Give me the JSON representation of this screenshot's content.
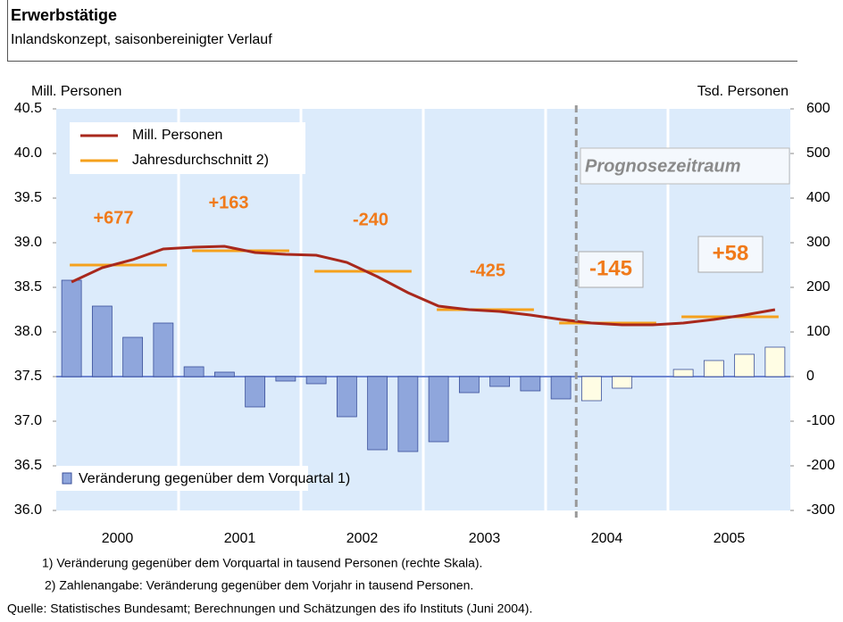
{
  "chart_data": {
    "type": "combo",
    "title": "Erwerbstätige",
    "subtitle": "Inlandskonzept, saisonbereinigter Verlauf",
    "ylabel": "Mill. Personen",
    "y2label": "Tsd. Personen",
    "categories": [
      "2000",
      "2001",
      "2002",
      "2003",
      "2004",
      "2005"
    ],
    "ylim": [
      36,
      40.5
    ],
    "yticks": [
      {
        "value": 36,
        "label": "36.0"
      },
      36.5,
      {
        "value": 37,
        "label": "37.0"
      },
      37.5,
      {
        "value": 38,
        "label": "38.0"
      },
      38.5,
      {
        "value": 39,
        "label": "39.0"
      },
      39.5,
      {
        "value": 40,
        "label": "40.0"
      },
      40.5
    ],
    "y2lim": [
      -300,
      600
    ],
    "y2ticks": [
      -300,
      -200,
      -100,
      0,
      100,
      200,
      300,
      400,
      500,
      600
    ],
    "series": [
      {
        "name": "Veränderung gegenüber dem Vorquartal 1)",
        "type": "bar",
        "axis": "y2",
        "color": "#8fa6dc",
        "forecast_color": "#fffde4",
        "values": [
          [
            216,
            158,
            88,
            120
          ],
          [
            22,
            10,
            -68,
            -10
          ],
          [
            -16,
            -90,
            -164,
            -168
          ],
          [
            -146,
            -36,
            -22,
            -32
          ],
          [
            -50,
            -54,
            -26,
            0
          ],
          [
            16,
            36,
            50,
            66
          ]
        ]
      },
      {
        "name": "Mill. Personen",
        "type": "line",
        "color": "#a8281c",
        "values": [
          [
            38.56,
            38.72,
            38.81,
            38.93
          ],
          [
            38.95,
            38.96,
            38.89,
            38.87
          ],
          [
            38.86,
            38.78,
            38.62,
            38.44
          ],
          [
            38.29,
            38.25,
            38.23,
            38.19
          ],
          [
            38.14,
            38.1,
            38.08,
            38.08
          ],
          [
            38.1,
            38.14,
            38.19,
            38.25
          ]
        ]
      },
      {
        "name": "Jahresdurchschnitt 2)",
        "type": "annual",
        "color": "#f5a11c",
        "values": [
          38.75,
          38.91,
          38.68,
          38.25,
          38.1,
          38.17
        ]
      }
    ],
    "annotations": {
      "values": [
        677,
        163,
        -240,
        -425,
        -145,
        58
      ],
      "value_labels": [
        "+677",
        "+163",
        "-240",
        "-425",
        "-145",
        "+58"
      ],
      "color": "#f07a1a",
      "boxed": [
        false,
        false,
        false,
        false,
        true,
        true
      ]
    },
    "forecast": {
      "label": "Prognosezeitraum",
      "start": [
        4,
        1
      ]
    },
    "footnotes": [
      "1) Veränderung gegenüber dem Vorquartal in tausend Personen (rechte Skala).",
      "2) Zahlenangabe: Veränderung gegenüber dem Vorjahr in tausend Personen."
    ],
    "source": "Quelle: Statistisches Bundesamt; Berechnungen und Schätzungen des ifo Instituts (Juni 2004)."
  }
}
